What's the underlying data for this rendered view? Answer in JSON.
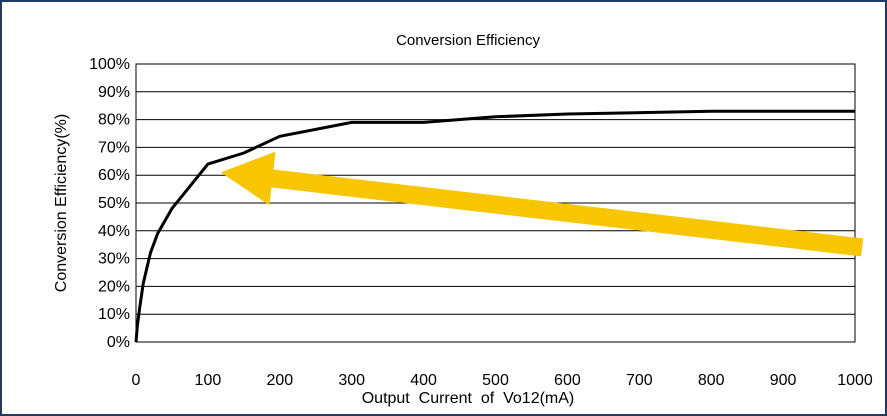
{
  "chart_data": {
    "type": "line",
    "title": "Conversion Efficiency",
    "xlabel": "Output  Current  of  Vo12(mA)",
    "ylabel": "Conversion Efficiency(%)",
    "xlim": [
      0,
      1000
    ],
    "ylim": [
      0,
      100
    ],
    "x_ticks": [
      "0",
      "100",
      "200",
      "300",
      "400",
      "500",
      "600",
      "700",
      "800",
      "900",
      "1000"
    ],
    "y_ticks": [
      "0%",
      "10%",
      "20%",
      "30%",
      "40%",
      "50%",
      "60%",
      "70%",
      "80%",
      "90%",
      "100%"
    ],
    "grid": true,
    "series": [
      {
        "x": [
          0,
          2,
          5,
          10,
          20,
          30,
          50,
          75,
          100,
          150,
          200,
          300,
          400,
          500,
          600,
          800,
          1000
        ],
        "y": [
          0,
          6,
          12,
          21,
          32,
          39,
          48,
          56,
          64,
          68,
          74,
          79,
          79,
          81,
          82,
          83,
          83
        ],
        "color": "#000000"
      }
    ],
    "annotation": {
      "type": "arrow",
      "color": "#F7C600",
      "from": [
        1010,
        34
      ],
      "to": [
        118,
        61
      ]
    }
  },
  "frame": {
    "border_color": "#1f3b63"
  }
}
